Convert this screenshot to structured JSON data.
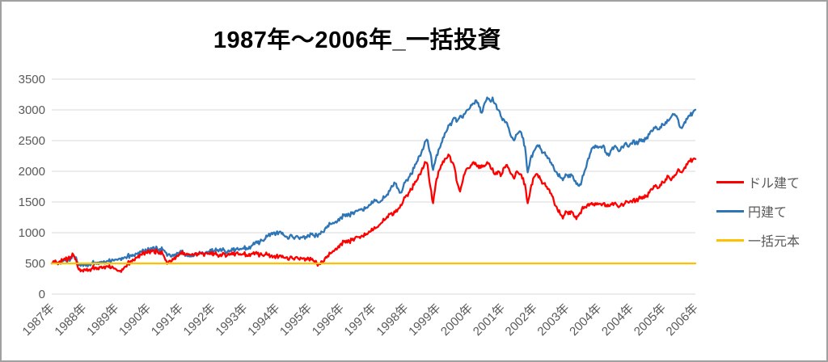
{
  "title": "1987年～2006年_一括投資",
  "colors": {
    "red_series": "#FF0000",
    "blue_series": "#2E75B6",
    "orange_series": "#FFC000",
    "gridline": "#D9D9D9",
    "axis_label": "#595959",
    "title_text": "#000000",
    "frame_border": "#A0A0A0"
  },
  "chart_data": {
    "type": "line",
    "title": "1987年～2006年_一括投資",
    "legend_position": "right",
    "grid": "horizontal",
    "y_axis": {
      "min": 0,
      "max": 3500,
      "step": 500,
      "tick_labels": [
        "0",
        "500",
        "1000",
        "1500",
        "2000",
        "2500",
        "3000",
        "3500"
      ]
    },
    "x_tick_labels": [
      "1987年",
      "1988年",
      "1989年",
      "1990年",
      "1991年",
      "1992年",
      "1993年",
      "1994年",
      "1995年",
      "1996年",
      "1997年",
      "1998年",
      "1999年",
      "2000年",
      "2001年",
      "2002年",
      "2003年",
      "2004年",
      "2004年",
      "2005年",
      "2006年"
    ],
    "x_unit": "monthly 1987-2006",
    "series": [
      {
        "id": "jpy",
        "name": "円建て",
        "color": "#2E75B6",
        "values": [
          500,
          512,
          506,
          522,
          532,
          548,
          558,
          578,
          622,
          600,
          472,
          486,
          492,
          482,
          496,
          506,
          502,
          516,
          512,
          526,
          522,
          536,
          532,
          546,
          562,
          578,
          592,
          602,
          616,
          632,
          642,
          662,
          676,
          692,
          702,
          712,
          722,
          732,
          726,
          742,
          736,
          722,
          682,
          642,
          612,
          622,
          652,
          672,
          682,
          662,
          632,
          612,
          632,
          652,
          662,
          672,
          662,
          682,
          692,
          702,
          702,
          712,
          722,
          716,
          702,
          692,
          706,
          716,
          726,
          722,
          732,
          742,
          752,
          772,
          792,
          812,
          832,
          852,
          872,
          902,
          952,
          982,
          1002,
          992,
          1002,
          982,
          952,
          932,
          942,
          932,
          922,
          936,
          926,
          942,
          932,
          952,
          976,
          952,
          962,
          982,
          1012,
          1062,
          1112,
          1142,
          1162,
          1182,
          1222,
          1252,
          1282,
          1302,
          1292,
          1312,
          1332,
          1352,
          1372,
          1362,
          1392,
          1422,
          1462,
          1502,
          1532,
          1492,
          1522,
          1572,
          1622,
          1682,
          1752,
          1802,
          1722,
          1652,
          1752,
          1852,
          1902,
          1952,
          2052,
          2152,
          2252,
          2352,
          2482,
          2502,
          2302,
          2022,
          2202,
          2352,
          2452,
          2552,
          2652,
          2752,
          2802,
          2872,
          2822,
          2902,
          2872,
          2952,
          3002,
          3082,
          3102,
          3152,
          3052,
          2952,
          3102,
          3202,
          3152,
          3202,
          3102,
          3002,
          2902,
          2852,
          2802,
          2702,
          2552,
          2502,
          2602,
          2652,
          2552,
          2402,
          1982,
          2202,
          2302,
          2382,
          2402,
          2352,
          2302,
          2252,
          2202,
          2102,
          2002,
          1952,
          1902,
          1852,
          1952,
          1902,
          1952,
          1872,
          1792,
          1762,
          1852,
          2002,
          2152,
          2282,
          2382,
          2422,
          2382,
          2402,
          2422,
          2302,
          2252,
          2352,
          2402,
          2382,
          2332,
          2402,
          2452,
          2402,
          2452,
          2502,
          2452,
          2482,
          2522,
          2482,
          2552,
          2602,
          2652,
          2702,
          2682,
          2722,
          2762,
          2802,
          2822,
          2882,
          2922,
          2902,
          2752,
          2702,
          2802,
          2852,
          2902,
          2952,
          3002
        ]
      },
      {
        "id": "usd",
        "name": "ドル建て",
        "color": "#FF0000",
        "values": [
          500,
          515,
          510,
          535,
          550,
          565,
          585,
          605,
          640,
          560,
          400,
          390,
          405,
          415,
          400,
          420,
          430,
          425,
          440,
          430,
          450,
          440,
          425,
          415,
          395,
          375,
          405,
          445,
          490,
          530,
          565,
          595,
          625,
          645,
          665,
          675,
          685,
          695,
          670,
          700,
          685,
          655,
          555,
          510,
          530,
          565,
          605,
          635,
          655,
          670,
          660,
          640,
          655,
          665,
          650,
          665,
          655,
          670,
          660,
          650,
          660,
          640,
          625,
          635,
          650,
          640,
          655,
          645,
          660,
          650,
          640,
          650,
          640,
          655,
          660,
          645,
          655,
          640,
          630,
          645,
          635,
          625,
          615,
          620,
          610,
          600,
          592,
          602,
          588,
          580,
          592,
          584,
          596,
          586,
          576,
          580,
          562,
          540,
          502,
          487,
          532,
          582,
          622,
          662,
          702,
          742,
          782,
          822,
          852,
          872,
          860,
          882,
          902,
          932,
          912,
          942,
          962,
          992,
          1022,
          1052,
          1082,
          1122,
          1162,
          1202,
          1262,
          1302,
          1282,
          1332,
          1382,
          1452,
          1522,
          1602,
          1652,
          1702,
          1782,
          1852,
          1952,
          2052,
          2152,
          2100,
          1750,
          1480,
          1800,
          2000,
          2100,
          2150,
          2210,
          2260,
          2150,
          2050,
          1800,
          1670,
          1850,
          2000,
          2050,
          2100,
          2150,
          2100,
          2050,
          2100,
          2080,
          2150,
          2100,
          2050,
          1950,
          2000,
          1920,
          2050,
          2100,
          2050,
          1950,
          1880,
          2000,
          1950,
          1880,
          1790,
          1480,
          1700,
          1880,
          1950,
          1900,
          1850,
          1800,
          1750,
          1700,
          1600,
          1450,
          1380,
          1300,
          1230,
          1350,
          1300,
          1350,
          1280,
          1220,
          1300,
          1380,
          1420,
          1450,
          1470,
          1455,
          1480,
          1460,
          1470,
          1480,
          1450,
          1430,
          1460,
          1480,
          1450,
          1432,
          1462,
          1482,
          1500,
          1520,
          1540,
          1520,
          1552,
          1582,
          1562,
          1602,
          1652,
          1702,
          1752,
          1722,
          1782,
          1822,
          1872,
          1922,
          1852,
          1902,
          1962,
          2022,
          1982,
          2062,
          2112,
          2162,
          2192,
          2200
        ]
      },
      {
        "id": "principal",
        "name": "一括元本",
        "color": "#FFC000",
        "values": [
          500,
          500
        ]
      }
    ]
  },
  "legend": {
    "items": [
      {
        "label": "ドル建て"
      },
      {
        "label": "円建て"
      },
      {
        "label": "一括元本"
      }
    ]
  }
}
